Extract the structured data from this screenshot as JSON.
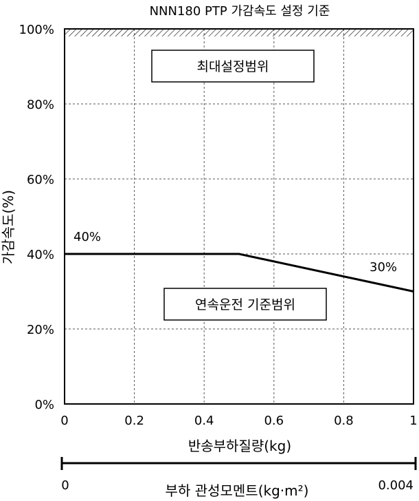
{
  "chart_data": {
    "type": "line",
    "title": "NNN180 PTP 가감속도 설정 기준",
    "xlabel": "반송부하질량(kg)",
    "ylabel": "가감속도(%)",
    "xlim": [
      0,
      1
    ],
    "ylim": [
      0,
      100
    ],
    "x_ticks": [
      "0",
      "0.2",
      "0.4",
      "0.6",
      "0.8",
      "1"
    ],
    "y_ticks": [
      "0%",
      "20%",
      "40%",
      "60%",
      "80%",
      "100%"
    ],
    "grid": true,
    "series": [
      {
        "x": [
          0,
          0.5,
          1
        ],
        "y": [
          40,
          40,
          30
        ]
      }
    ],
    "annotations": {
      "start_label": "40%",
      "end_label": "30%",
      "upper_region": "최대설정범위",
      "lower_region": "연속운전 기준범위"
    },
    "upper_limit_hatch_y": [
      98,
      100
    ],
    "secondary_axis": {
      "label": "부하 관성모멘트(kg·m²)",
      "min_label": "0",
      "max_label": "0.004"
    }
  }
}
